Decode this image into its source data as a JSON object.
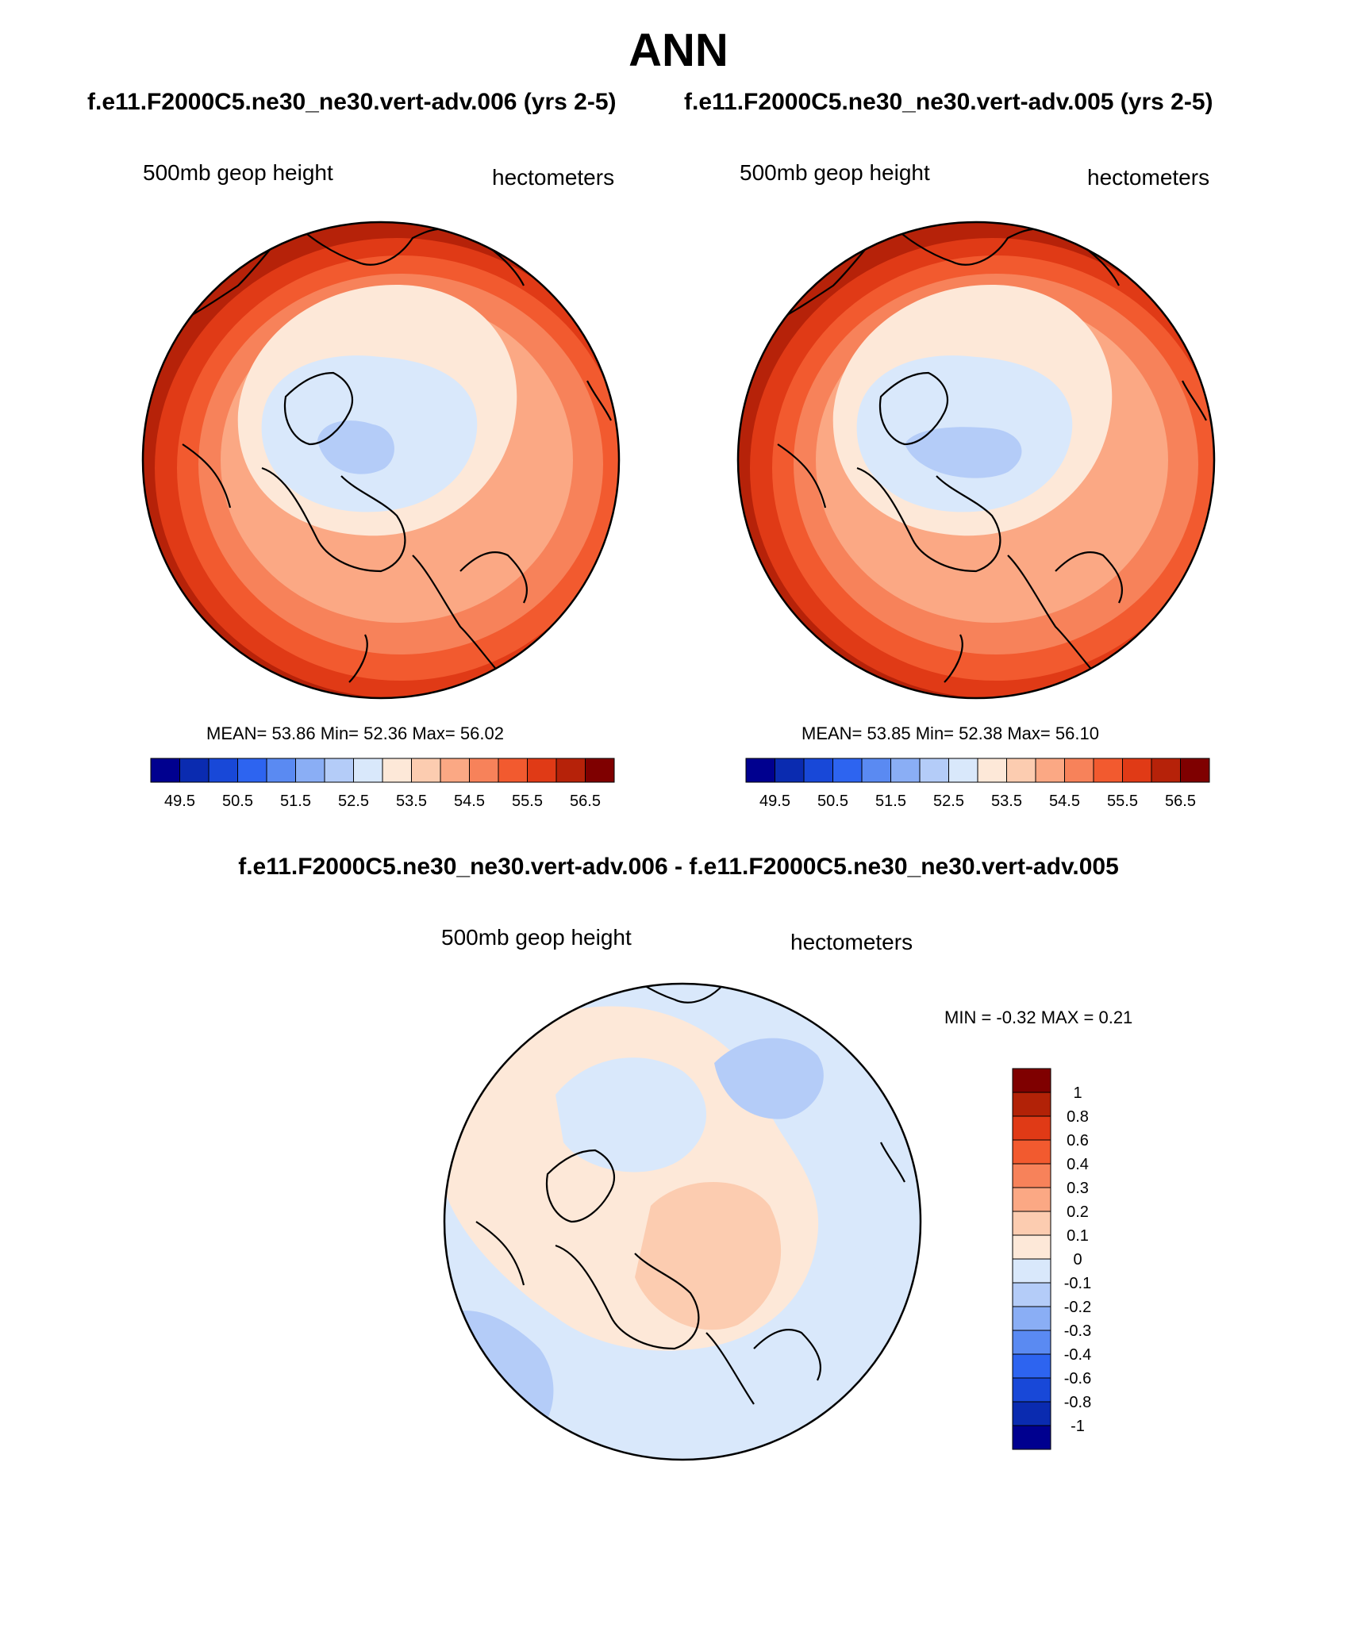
{
  "title": "ANN",
  "case_labels": {
    "left": "f.e11.F2000C5.ne30_ne30.vert-adv.006 (yrs 2-5)",
    "right": "f.e11.F2000C5.ne30_ne30.vert-adv.005 (yrs 2-5)"
  },
  "diff_title": "f.e11.F2000C5.ne30_ne30.vert-adv.006 - f.e11.F2000C5.ne30_ne30.vert-adv.005",
  "panels": [
    {
      "variable": "500mb geop height",
      "units": "hectometers",
      "mean_label": "MEAN=",
      "mean": "53.86",
      "min_label": "Min=",
      "min": "52.36",
      "max_label": "Max=",
      "max": "56.02",
      "colorbar_labels": [
        "49.5",
        "50.5",
        "51.5",
        "52.5",
        "53.5",
        "54.5",
        "55.5",
        "56.5"
      ]
    },
    {
      "variable": "500mb geop height",
      "units": "hectometers",
      "mean_label": "MEAN=",
      "mean": "53.85",
      "min_label": "Min=",
      "min": "52.38",
      "max_label": "Max=",
      "max": "56.10",
      "colorbar_labels": [
        "49.5",
        "50.5",
        "51.5",
        "52.5",
        "53.5",
        "54.5",
        "55.5",
        "56.5"
      ]
    }
  ],
  "difference": {
    "variable": "500mb geop height",
    "units": "hectometers",
    "min_label": "MIN =",
    "min": "-0.32",
    "max_label": "MAX =",
    "max": "0.21",
    "colorbar_labels": [
      "1",
      "0.8",
      "0.6",
      "0.4",
      "0.3",
      "0.2",
      "0.1",
      "0",
      "-0.1",
      "-0.2",
      "-0.3",
      "-0.4",
      "-0.6",
      "-0.8",
      "-1"
    ]
  },
  "colors": {
    "full_field_palette": [
      "#00008f",
      "#0a2bb0",
      "#1848d8",
      "#2d64f0",
      "#5a8af2",
      "#8aaef5",
      "#b4ccf8",
      "#d9e8fb",
      "#fde8d8",
      "#fcccb0",
      "#fba884",
      "#f7825a",
      "#f25a2f",
      "#e03a16",
      "#b62209",
      "#7f0000"
    ],
    "diff_palette": [
      "#7f0000",
      "#b22207",
      "#e03a16",
      "#f25a2f",
      "#f7825a",
      "#fba884",
      "#fcccb0",
      "#fde8d8",
      "#d9e8fb",
      "#b4ccf8",
      "#8aaef5",
      "#5a8af2",
      "#2d64f0",
      "#1848d8",
      "#0a2bb0",
      "#00008f"
    ],
    "coastline": "#000000"
  }
}
